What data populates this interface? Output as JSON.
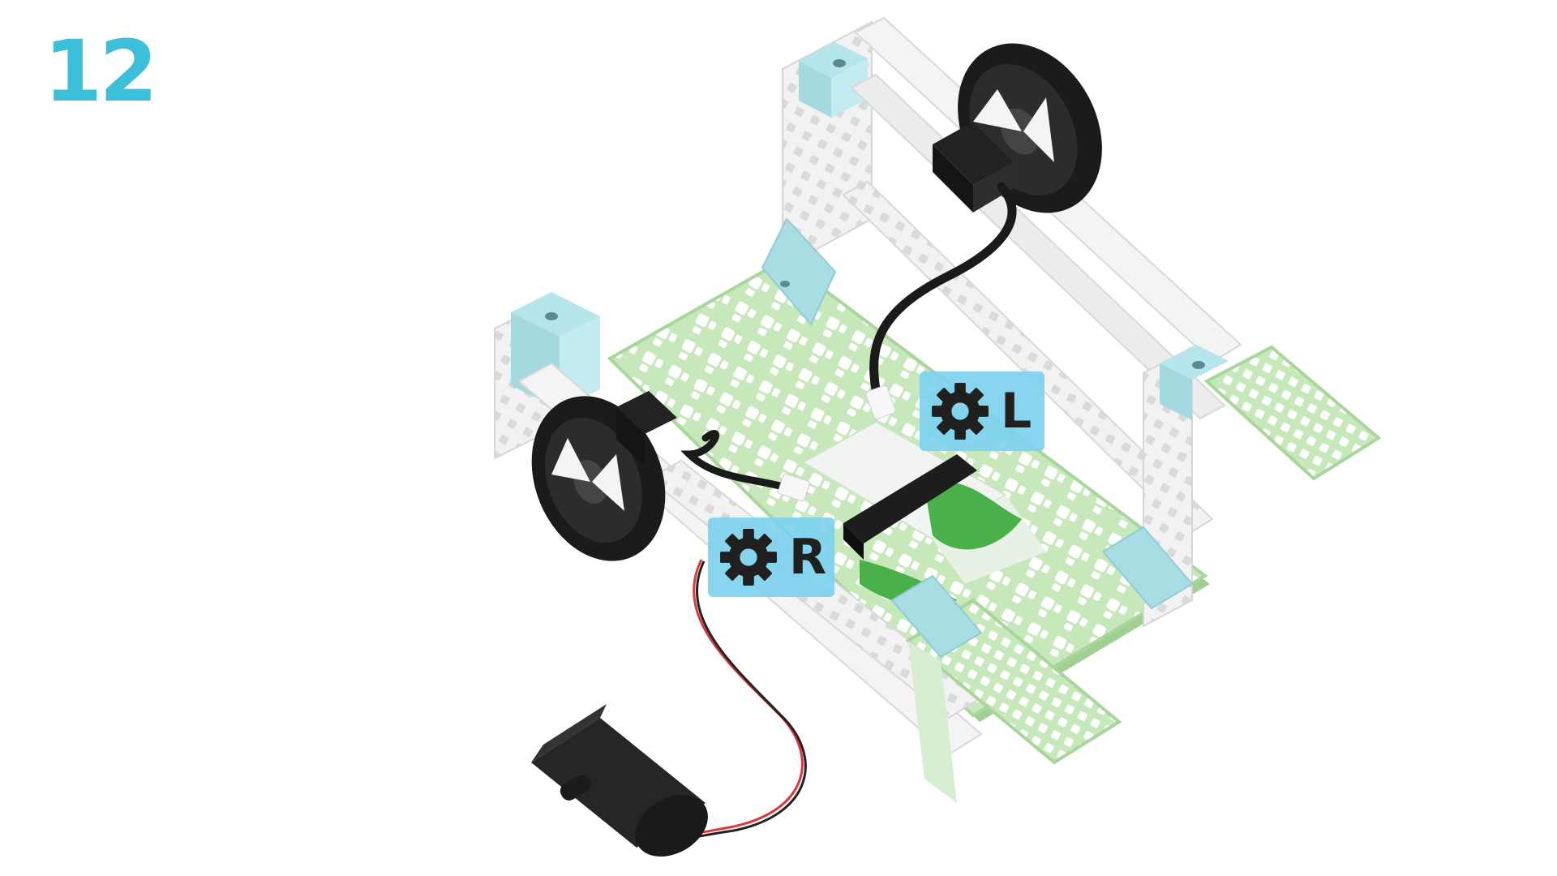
{
  "step": {
    "number": "12"
  },
  "badges": [
    {
      "label": "L",
      "icon": "gear-icon"
    },
    {
      "label": "R",
      "icon": "gear-icon"
    }
  ],
  "colors": {
    "step_number": "#3cbfd9",
    "badge_bg": "#7fd2ee",
    "frame_white": "#f1f1f1",
    "connector_blue": "#b6e6ec",
    "grid_green": "#bfe4b2",
    "motor_black": "#1e1e1e",
    "wire_red": "#d83a3a"
  }
}
